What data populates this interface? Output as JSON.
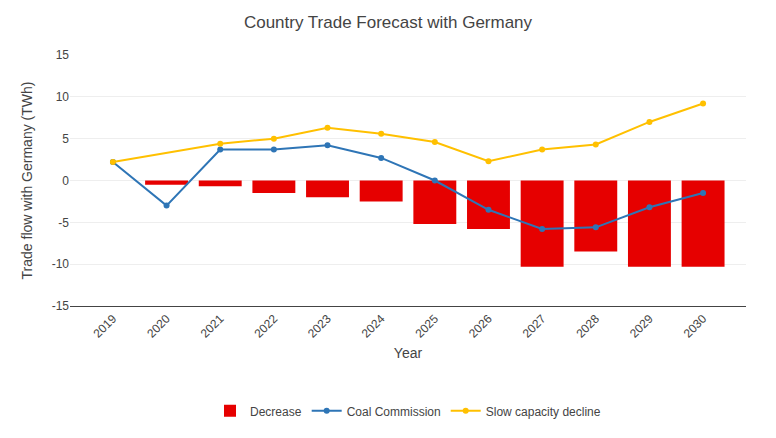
{
  "chart_data": {
    "type": "bar",
    "title": "Country Trade Forecast with Germany",
    "x_label": "Year",
    "y_label": "Trade flow with Germany (TWh)",
    "x": [
      2019,
      2020,
      2021,
      2022,
      2023,
      2024,
      2025,
      2026,
      2027,
      2028,
      2029,
      2030
    ],
    "series": [
      {
        "name": "Decrease",
        "type": "bar",
        "color": "#e60000",
        "values": [
          null,
          -0.5,
          -0.7,
          -1.5,
          -2.0,
          -2.5,
          -5.2,
          -5.8,
          -10.3,
          -8.5,
          -10.3,
          -10.3
        ]
      },
      {
        "name": "Coal Commission",
        "type": "line",
        "color": "#2e75b6",
        "marker": "circle",
        "values": [
          2.2,
          -3.0,
          3.7,
          3.7,
          4.2,
          2.7,
          0.0,
          -3.5,
          -5.8,
          -5.6,
          -3.2,
          -1.5
        ]
      },
      {
        "name": "Slow capacity decline",
        "type": "line",
        "color": "#ffc000",
        "marker": "circle",
        "values": [
          2.2,
          null,
          4.4,
          5.0,
          6.3,
          5.6,
          4.6,
          2.3,
          3.7,
          4.3,
          7.0,
          9.2
        ]
      }
    ],
    "xlim": [
      2018.2,
      2030.8
    ],
    "xticks": [
      2019,
      2020,
      2021,
      2022,
      2023,
      2024,
      2025,
      2026,
      2027,
      2028,
      2029,
      2030
    ],
    "ylim": [
      -15,
      15
    ],
    "yticks": [
      -15,
      -10,
      -5,
      0,
      5,
      10,
      15
    ],
    "grid": true,
    "legend": "bottom"
  }
}
